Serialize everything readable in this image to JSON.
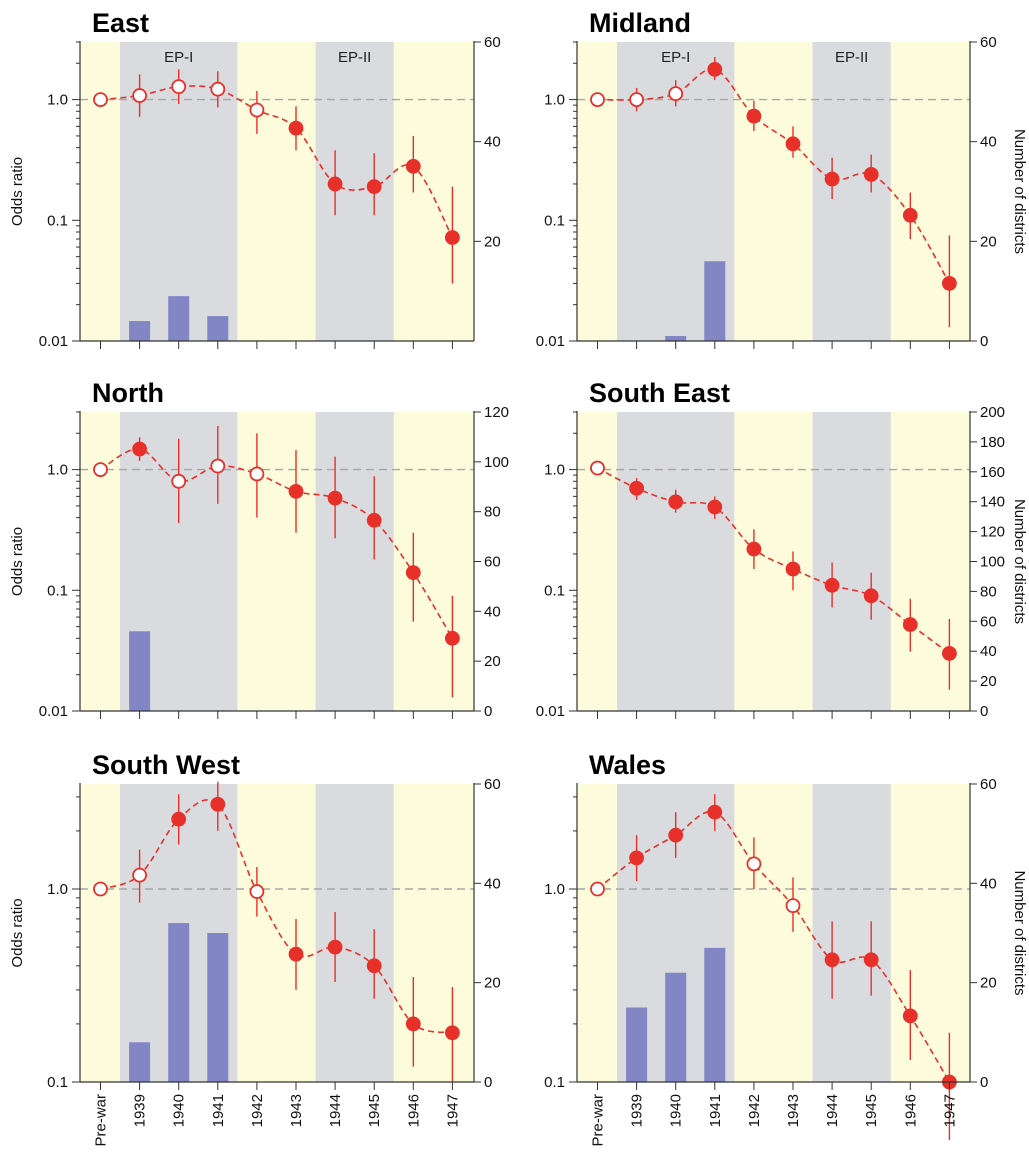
{
  "figure": {
    "x_categories": [
      "Pre-war",
      "1939",
      "1940",
      "1941",
      "1942",
      "1943",
      "1944",
      "1945",
      "1946",
      "1947"
    ],
    "colors": {
      "band_yellow": "#fcfcdc",
      "band_grey": "#dadbdf",
      "odds_line": "#e8302a",
      "bar": "#8286c4",
      "reference_line": "#a6a6a6"
    }
  },
  "chart_data": [
    {
      "type": "bar+line",
      "title": "East",
      "ylabel_left": "Odds ratio",
      "ylabel_right": "",
      "y_left_scale": "log",
      "y_left_ticks": [
        "0.01",
        "0.1",
        "1.0"
      ],
      "y_left_range": [
        0.01,
        3.0
      ],
      "y_right_range": [
        0,
        60
      ],
      "y_right_ticks": [
        "20",
        "40",
        "60"
      ],
      "period_labels": [
        {
          "text": "EP-I",
          "span": [
            "1939",
            "1941"
          ]
        },
        {
          "text": "EP-II",
          "span": [
            "1944",
            "1945"
          ]
        }
      ],
      "bands": [
        "yellow",
        "grey",
        "grey",
        "grey",
        "yellow",
        "yellow",
        "grey",
        "grey",
        "yellow",
        "yellow"
      ],
      "series": [
        {
          "kind": "odds_ratio",
          "values": [
            1.0,
            1.08,
            1.28,
            1.22,
            0.82,
            0.58,
            0.2,
            0.19,
            0.28,
            0.072
          ],
          "ci_low": [
            1.0,
            0.72,
            0.92,
            0.86,
            0.52,
            0.38,
            0.11,
            0.11,
            0.17,
            0.03
          ],
          "ci_high": [
            1.0,
            1.62,
            1.78,
            1.72,
            1.18,
            0.88,
            0.38,
            0.36,
            0.5,
            0.19
          ],
          "significant": [
            false,
            false,
            false,
            false,
            false,
            true,
            true,
            true,
            true,
            true
          ]
        },
        {
          "kind": "number_of_districts",
          "values": [
            0,
            4,
            9,
            5,
            0,
            0,
            0,
            0,
            0,
            0
          ]
        }
      ]
    },
    {
      "type": "bar+line",
      "title": "Midland",
      "ylabel_left": "",
      "ylabel_right": "Number of districts",
      "y_left_scale": "log",
      "y_left_ticks": [
        "0.01",
        "0.1",
        "1.0"
      ],
      "y_left_range": [
        0.01,
        3.0
      ],
      "y_right_range": [
        0,
        60
      ],
      "y_right_ticks": [
        "0",
        "20",
        "40",
        "60"
      ],
      "period_labels": [
        {
          "text": "EP-I",
          "span": [
            "1939",
            "1941"
          ]
        },
        {
          "text": "EP-II",
          "span": [
            "1944",
            "1945"
          ]
        }
      ],
      "bands": [
        "yellow",
        "grey",
        "grey",
        "grey",
        "yellow",
        "yellow",
        "grey",
        "grey",
        "yellow",
        "yellow"
      ],
      "series": [
        {
          "kind": "odds_ratio",
          "values": [
            1.0,
            1.0,
            1.12,
            1.78,
            0.73,
            0.43,
            0.22,
            0.24,
            0.11,
            0.03
          ],
          "ci_low": [
            1.0,
            0.8,
            0.88,
            1.45,
            0.55,
            0.33,
            0.15,
            0.17,
            0.07,
            0.013
          ],
          "ci_high": [
            1.0,
            1.25,
            1.45,
            2.25,
            0.98,
            0.6,
            0.33,
            0.35,
            0.17,
            0.075
          ],
          "significant": [
            false,
            false,
            false,
            true,
            true,
            true,
            true,
            true,
            true,
            true
          ]
        },
        {
          "kind": "number_of_districts",
          "values": [
            0,
            0,
            1,
            16,
            0,
            0,
            0,
            0,
            0,
            0
          ]
        }
      ]
    },
    {
      "type": "bar+line",
      "title": "North",
      "ylabel_left": "Odds ratio",
      "ylabel_right": "",
      "y_left_scale": "log",
      "y_left_ticks": [
        "0.01",
        "0.1",
        "1.0"
      ],
      "y_left_range": [
        0.01,
        3.0
      ],
      "y_right_range": [
        0,
        120
      ],
      "y_right_ticks": [
        "0",
        "20",
        "40",
        "60",
        "80",
        "100",
        "120"
      ],
      "period_labels": [],
      "bands": [
        "yellow",
        "grey",
        "grey",
        "grey",
        "yellow",
        "yellow",
        "grey",
        "grey",
        "yellow",
        "yellow"
      ],
      "series": [
        {
          "kind": "odds_ratio",
          "values": [
            1.0,
            1.48,
            0.8,
            1.07,
            0.92,
            0.66,
            0.58,
            0.38,
            0.14,
            0.04
          ],
          "ci_low": [
            1.0,
            1.18,
            0.36,
            0.52,
            0.4,
            0.3,
            0.27,
            0.18,
            0.055,
            0.013
          ],
          "ci_high": [
            1.0,
            1.85,
            1.8,
            2.3,
            2.0,
            1.45,
            1.28,
            0.88,
            0.3,
            0.09
          ],
          "significant": [
            false,
            true,
            false,
            false,
            false,
            true,
            true,
            true,
            true,
            true
          ]
        },
        {
          "kind": "number_of_districts",
          "values": [
            0,
            32,
            0,
            0,
            0,
            0,
            0,
            0,
            0,
            0
          ]
        }
      ]
    },
    {
      "type": "bar+line",
      "title": "South East",
      "ylabel_left": "",
      "ylabel_right": "Number of districts",
      "y_left_scale": "log",
      "y_left_ticks": [
        "0.01",
        "0.1",
        "1.0"
      ],
      "y_left_range": [
        0.01,
        3.0
      ],
      "y_right_range": [
        0,
        200
      ],
      "y_right_ticks": [
        "0",
        "20",
        "40",
        "60",
        "80",
        "100",
        "120",
        "140",
        "160",
        "180",
        "200"
      ],
      "period_labels": [],
      "bands": [
        "yellow",
        "grey",
        "grey",
        "grey",
        "yellow",
        "yellow",
        "grey",
        "grey",
        "yellow",
        "yellow"
      ],
      "series": [
        {
          "kind": "odds_ratio",
          "values": [
            1.03,
            0.7,
            0.54,
            0.49,
            0.22,
            0.15,
            0.11,
            0.09,
            0.052,
            0.03
          ],
          "ci_low": [
            1.0,
            0.56,
            0.44,
            0.39,
            0.15,
            0.1,
            0.072,
            0.057,
            0.031,
            0.015
          ],
          "ci_high": [
            1.1,
            0.85,
            0.68,
            0.6,
            0.32,
            0.21,
            0.17,
            0.14,
            0.085,
            0.058
          ],
          "significant": [
            false,
            true,
            true,
            true,
            true,
            true,
            true,
            true,
            true,
            true
          ]
        },
        {
          "kind": "number_of_districts",
          "values": [
            0,
            0,
            0,
            0,
            0,
            0,
            0,
            0,
            0,
            0
          ]
        }
      ]
    },
    {
      "type": "bar+line",
      "title": "South West",
      "ylabel_left": "Odds ratio",
      "ylabel_right": "",
      "y_left_scale": "log",
      "y_left_ticks": [
        "0.1",
        "1.0"
      ],
      "y_left_range": [
        0.1,
        3.5
      ],
      "y_right_range": [
        0,
        60
      ],
      "y_right_ticks": [
        "0",
        "20",
        "40",
        "60"
      ],
      "period_labels": [],
      "bands": [
        "yellow",
        "grey",
        "grey",
        "grey",
        "yellow",
        "yellow",
        "grey",
        "grey",
        "yellow",
        "yellow"
      ],
      "series": [
        {
          "kind": "odds_ratio",
          "values": [
            1.0,
            1.18,
            2.3,
            2.75,
            0.97,
            0.46,
            0.5,
            0.4,
            0.2,
            0.18
          ],
          "ci_low": [
            1.0,
            0.85,
            1.7,
            2.0,
            0.72,
            0.3,
            0.33,
            0.27,
            0.12,
            0.1
          ],
          "ci_high": [
            1.0,
            1.6,
            3.1,
            3.6,
            1.3,
            0.7,
            0.76,
            0.62,
            0.35,
            0.31
          ],
          "significant": [
            false,
            false,
            true,
            true,
            false,
            true,
            true,
            true,
            true,
            true
          ]
        },
        {
          "kind": "number_of_districts",
          "values": [
            0,
            8,
            32,
            30,
            0,
            0,
            0,
            0,
            0,
            0
          ]
        }
      ]
    },
    {
      "type": "bar+line",
      "title": "Wales",
      "ylabel_left": "",
      "ylabel_right": "Number of districts",
      "y_left_scale": "log",
      "y_left_ticks": [
        "0.1",
        "1.0"
      ],
      "y_left_range": [
        0.1,
        3.5
      ],
      "y_right_range": [
        0,
        60
      ],
      "y_right_ticks": [
        "0",
        "20",
        "40",
        "60"
      ],
      "period_labels": [],
      "bands": [
        "yellow",
        "grey",
        "grey",
        "grey",
        "yellow",
        "yellow",
        "grey",
        "grey",
        "yellow",
        "yellow"
      ],
      "series": [
        {
          "kind": "odds_ratio",
          "values": [
            1.0,
            1.45,
            1.9,
            2.5,
            1.35,
            0.82,
            0.43,
            0.43,
            0.22,
            0.1
          ],
          "ci_low": [
            1.0,
            1.1,
            1.45,
            2.0,
            1.0,
            0.6,
            0.27,
            0.28,
            0.13,
            0.05
          ],
          "ci_high": [
            1.0,
            1.9,
            2.5,
            3.1,
            1.85,
            1.15,
            0.68,
            0.68,
            0.38,
            0.18
          ],
          "significant": [
            false,
            true,
            true,
            true,
            false,
            false,
            true,
            true,
            true,
            true
          ]
        },
        {
          "kind": "number_of_districts",
          "values": [
            0,
            15,
            22,
            27,
            0,
            0,
            0,
            0,
            0,
            0
          ]
        }
      ]
    }
  ]
}
